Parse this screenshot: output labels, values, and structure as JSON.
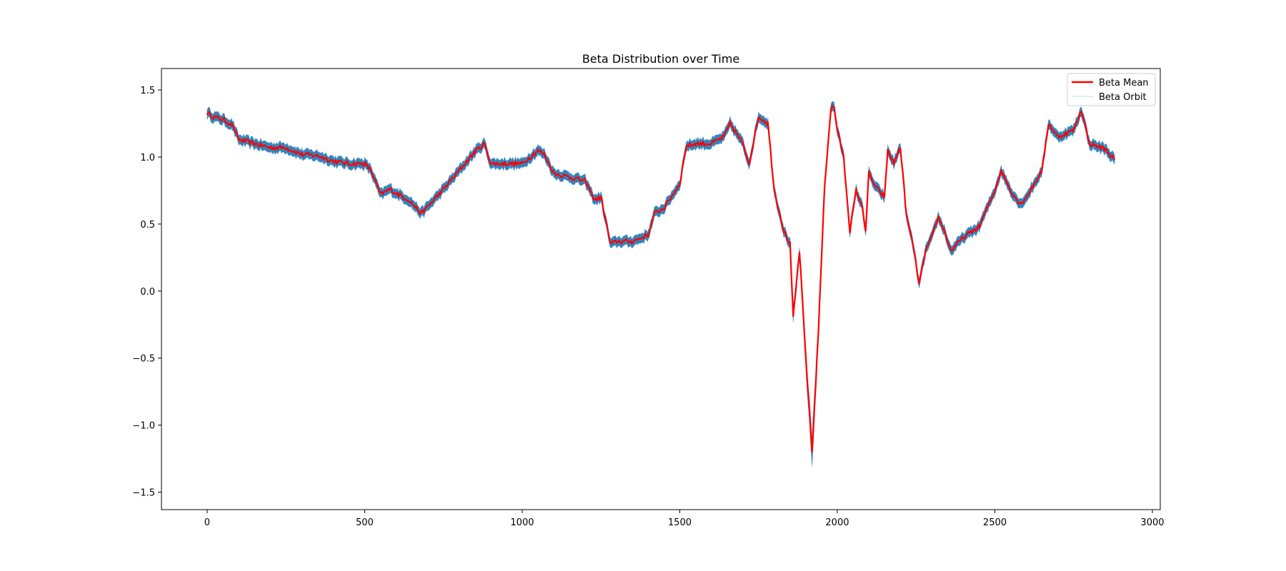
{
  "chart_data": {
    "type": "line",
    "title": "Beta Distribution over Time",
    "xlabel": "",
    "ylabel": "",
    "xlim": [
      -145,
      3025
    ],
    "ylim": [
      -1.63,
      1.66
    ],
    "xticks": [
      0,
      500,
      1000,
      1500,
      2000,
      2500,
      3000
    ],
    "xtick_labels": [
      "0",
      "500",
      "1000",
      "1500",
      "2000",
      "2500",
      "3000"
    ],
    "yticks": [
      1.5,
      1.0,
      0.5,
      0.0,
      -0.5,
      -1.0,
      -1.5
    ],
    "ytick_labels": [
      "1.5",
      "1.0",
      "0.5",
      "0.0",
      "−0.5",
      "−1.0",
      "−1.5"
    ],
    "grid": false,
    "legend_position": "top-right",
    "colors": {
      "mean": "#ff0000",
      "orbit": "#1f77b4",
      "axes": "#000000"
    },
    "series": [
      {
        "name": "Beta Mean",
        "color": "#ff0000",
        "x": [
          0,
          20,
          50,
          80,
          100,
          150,
          200,
          250,
          300,
          350,
          400,
          450,
          500,
          520,
          550,
          580,
          600,
          640,
          680,
          700,
          750,
          800,
          850,
          880,
          900,
          950,
          1000,
          1050,
          1070,
          1100,
          1150,
          1200,
          1230,
          1250,
          1280,
          1300,
          1350,
          1400,
          1420,
          1450,
          1500,
          1520,
          1550,
          1600,
          1640,
          1660,
          1700,
          1720,
          1750,
          1780,
          1800,
          1830,
          1850,
          1860,
          1880,
          1900,
          1920,
          1940,
          1960,
          1980,
          1990,
          2000,
          2020,
          2040,
          2060,
          2080,
          2090,
          2100,
          2120,
          2150,
          2160,
          2180,
          2200,
          2220,
          2240,
          2260,
          2280,
          2300,
          2320,
          2340,
          2360,
          2400,
          2450,
          2500,
          2520,
          2550,
          2580,
          2600,
          2650,
          2670,
          2700,
          2750,
          2775,
          2800,
          2850,
          2880
        ],
        "values": [
          1.33,
          1.3,
          1.28,
          1.24,
          1.13,
          1.1,
          1.07,
          1.07,
          1.02,
          1.01,
          0.97,
          0.95,
          0.95,
          0.9,
          0.72,
          0.76,
          0.73,
          0.68,
          0.58,
          0.63,
          0.76,
          0.9,
          1.04,
          1.1,
          0.95,
          0.95,
          0.95,
          1.05,
          1.02,
          0.88,
          0.85,
          0.82,
          0.68,
          0.7,
          0.35,
          0.37,
          0.37,
          0.42,
          0.58,
          0.62,
          0.8,
          1.08,
          1.1,
          1.1,
          1.15,
          1.25,
          1.1,
          0.95,
          1.3,
          1.25,
          0.75,
          0.45,
          0.35,
          -0.2,
          0.3,
          -0.5,
          -1.2,
          -0.3,
          0.8,
          1.37,
          1.37,
          1.2,
          1.0,
          0.45,
          0.75,
          0.62,
          0.45,
          0.88,
          0.78,
          0.7,
          1.05,
          0.95,
          1.08,
          0.55,
          0.35,
          0.05,
          0.3,
          0.4,
          0.55,
          0.45,
          0.3,
          0.4,
          0.48,
          0.75,
          0.9,
          0.75,
          0.65,
          0.7,
          0.9,
          1.25,
          1.15,
          1.2,
          1.35,
          1.1,
          1.06,
          0.98
        ]
      },
      {
        "name": "Beta Orbit",
        "color": "#1f77b4"
      }
    ]
  }
}
